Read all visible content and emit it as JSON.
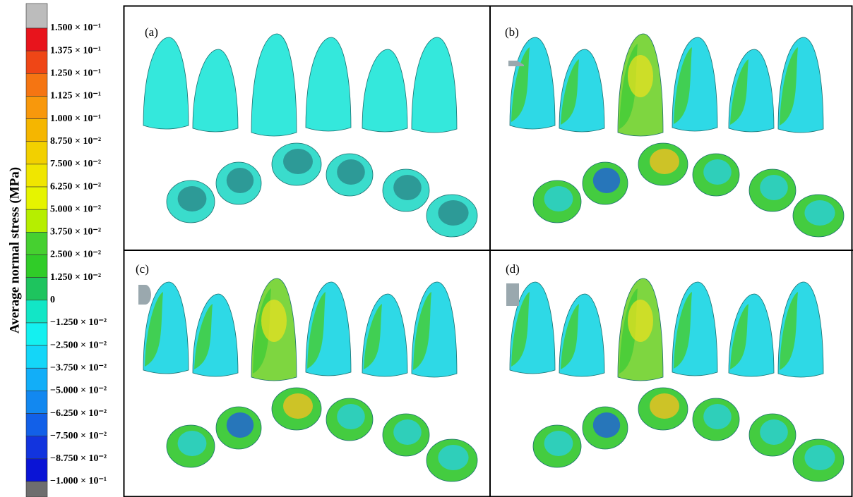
{
  "colorbar": {
    "title": "Average normal stress (MPa)",
    "labels": [
      "1.500 × 10⁻¹",
      "1.375 × 10⁻¹",
      "1.250 × 10⁻¹",
      "1.125 × 10⁻¹",
      "1.000 × 10⁻¹",
      "8.750 × 10⁻²",
      "7.500 × 10⁻²",
      "6.250 × 10⁻²",
      "5.000 × 10⁻²",
      "3.750 × 10⁻²",
      "2.500 × 10⁻²",
      "1.250 × 10⁻²",
      "0",
      "−1.250 × 10⁻²",
      "−2.500 × 10⁻²",
      "−3.750 × 10⁻²",
      "−5.000 × 10⁻²",
      "−6.250 × 10⁻²",
      "−7.500 × 10⁻²",
      "−8.750 × 10⁻²",
      "−1.000 × 10⁻¹"
    ]
  },
  "panels": [
    {
      "label": "(a)"
    },
    {
      "label": "(b)"
    },
    {
      "label": "(c)"
    },
    {
      "label": "(d)"
    }
  ]
}
